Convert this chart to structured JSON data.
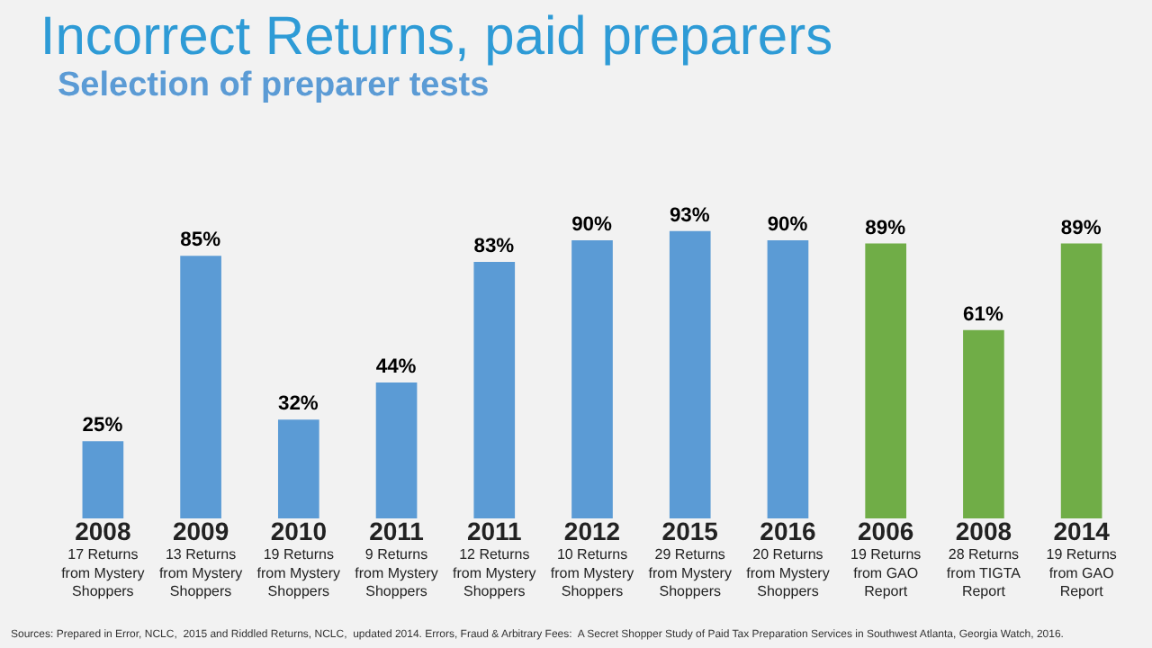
{
  "chart_data": {
    "type": "bar",
    "title": "Incorrect Returns, paid preparers",
    "subtitle": "Selection of preparer tests",
    "categories": [
      "2008\n17 Returns\nfrom Mystery\nShoppers",
      "2009\n13 Returns\nfrom Mystery\nShoppers",
      "2010\n19 Returns\nfrom Mystery\nShoppers",
      "2011\n9 Returns\nfrom Mystery\nShoppers",
      "2011\n12 Returns\nfrom Mystery\nShoppers",
      "2012\n10 Returns\nfrom Mystery\nShoppers",
      "2015\n29 Returns\nfrom Mystery\nShoppers",
      "2016\n20 Returns\nfrom Mystery\nShoppers",
      "2006\n19 Returns\nfrom GAO\nReport",
      "2008\n28 Returns\nfrom TIGTA\nReport",
      "2014\n19 Returns\nfrom GAO\nReport"
    ],
    "values": [
      25,
      85,
      32,
      44,
      83,
      90,
      93,
      90,
      89,
      61,
      89
    ],
    "value_labels": [
      "25%",
      "85%",
      "32%",
      "44%",
      "83%",
      "90%",
      "93%",
      "90%",
      "89%",
      "61%",
      "89%"
    ],
    "colors": [
      "#5b9bd5",
      "#5b9bd5",
      "#5b9bd5",
      "#5b9bd5",
      "#5b9bd5",
      "#5b9bd5",
      "#5b9bd5",
      "#5b9bd5",
      "#70ad47",
      "#70ad47",
      "#70ad47"
    ],
    "annotations": [
      "Sources: Prepared in Error, NCLC,  2015 and Riddled Returns, NCLC,  updated 2014. Errors, Fraud & Arbitrary Fees:  A Secret Shopper Study of Paid Tax Preparation Services in Southwest Atlanta, Georgia Watch, 2016."
    ],
    "grid": false
  }
}
